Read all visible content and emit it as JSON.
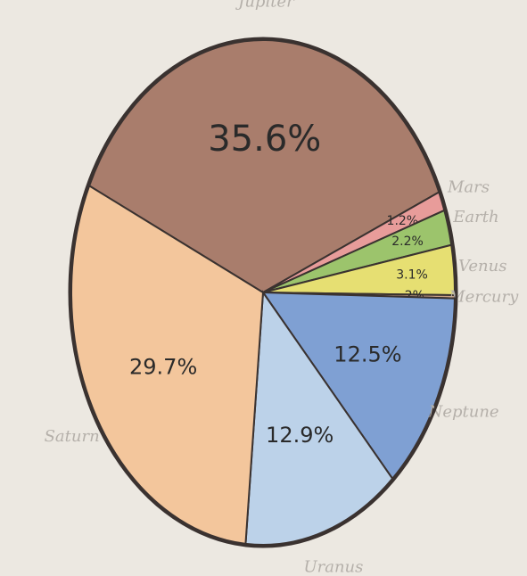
{
  "chart_data": {
    "type": "pie",
    "categories": [
      "Jupiter",
      "Mars",
      "Earth",
      "Venus",
      "Mercury",
      "Neptune",
      "Uranus",
      "Saturn"
    ],
    "values": [
      35.6,
      1.2,
      2.2,
      3.1,
      0.2,
      12.5,
      12.9,
      29.7
    ],
    "value_labels": [
      "35.6%",
      "1.2%",
      "2.2%",
      "3.1%",
      ".2%",
      "12.5%",
      "12.9%",
      "29.7%"
    ],
    "colors": [
      "#a97d6c",
      "#e89c9a",
      "#9cc46c",
      "#e6df72",
      "#c9a183",
      "#7fa0d3",
      "#bcd2e9",
      "#f3c69c"
    ]
  }
}
